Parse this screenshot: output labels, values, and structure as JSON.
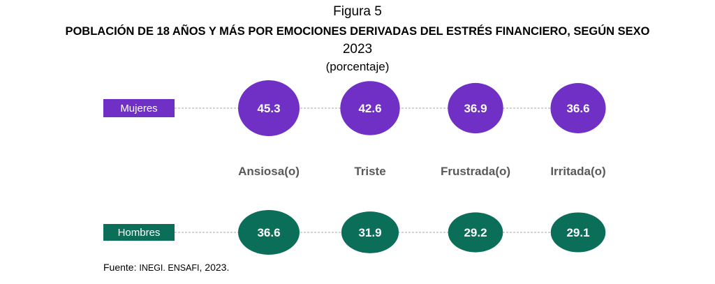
{
  "figure_label": "Figura 5",
  "title": "POBLACIÓN DE 18 AÑOS Y MÁS POR EMOCIONES DERIVADAS DEL ESTRÉS FINANCIERO, SEGÚN SEXO",
  "year": "2023",
  "units": "(porcentaje)",
  "source": {
    "prefix": "Fuente: ",
    "body": "INEGI. ENSAFI",
    "suffix": ", 2023."
  },
  "colors": {
    "mujeres": "#7030c6",
    "hombres": "#0b6e58",
    "category_text": "#595959",
    "connector": "#a6a6a6"
  },
  "chart_data": {
    "type": "bubble-table",
    "categories": [
      "Ansiosa(o)",
      "Triste",
      "Frustrada(o)",
      "Irritada(o)"
    ],
    "series": [
      {
        "name": "Mujeres",
        "values": [
          45.3,
          42.6,
          36.9,
          36.6
        ]
      },
      {
        "name": "Hombres",
        "values": [
          36.6,
          31.9,
          29.2,
          29.1
        ]
      }
    ]
  }
}
